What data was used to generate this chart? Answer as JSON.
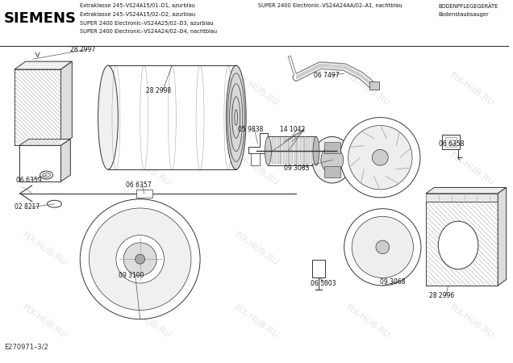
{
  "title_company": "SIEMENS",
  "header_lines_left": [
    "Extraklasse 245–VS24A15/01–D1, azurblau",
    "Extraklasse 245–VS24A15/02–D2, azurblau",
    "SUPER 2400 Electronic–VS24A25/02–D3, azurblau",
    "SUPER 2400 Electronic–VS24A24/02–D4, nachtblau"
  ],
  "header_middle": "SUPER 2400 Electronic–VS24A24AA/02–A1, nachtblau",
  "header_right_line1": "BODENPFLEGEGERÄTE",
  "header_right_line2": "Bodenstaubsauger",
  "watermark": "FIX-HUB.RU",
  "footer": "E270971–3/2",
  "bg_color": "#ffffff",
  "line_color": "#333333",
  "text_color": "#1a1a1a"
}
